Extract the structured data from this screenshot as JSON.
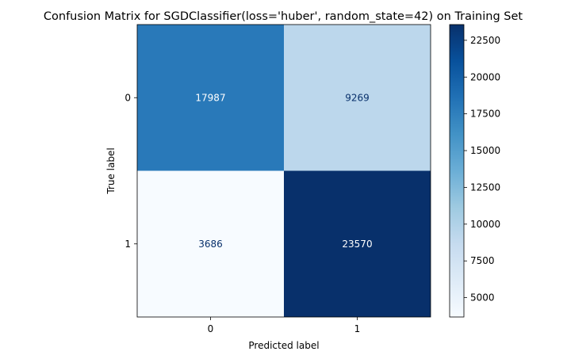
{
  "chart_data": {
    "type": "heatmap",
    "title": "Confusion Matrix for SGDClassifier(loss='huber', random_state=42) on Training Set",
    "xlabel": "Predicted label",
    "ylabel": "True label",
    "x_categories": [
      "0",
      "1"
    ],
    "y_categories": [
      "0",
      "1"
    ],
    "values": [
      [
        17987,
        9269
      ],
      [
        3686,
        23570
      ]
    ],
    "colormap": "Blues",
    "colorbar": {
      "range": [
        3686,
        23570
      ],
      "ticks": [
        5000,
        7500,
        10000,
        12500,
        15000,
        17500,
        20000,
        22500
      ]
    }
  }
}
